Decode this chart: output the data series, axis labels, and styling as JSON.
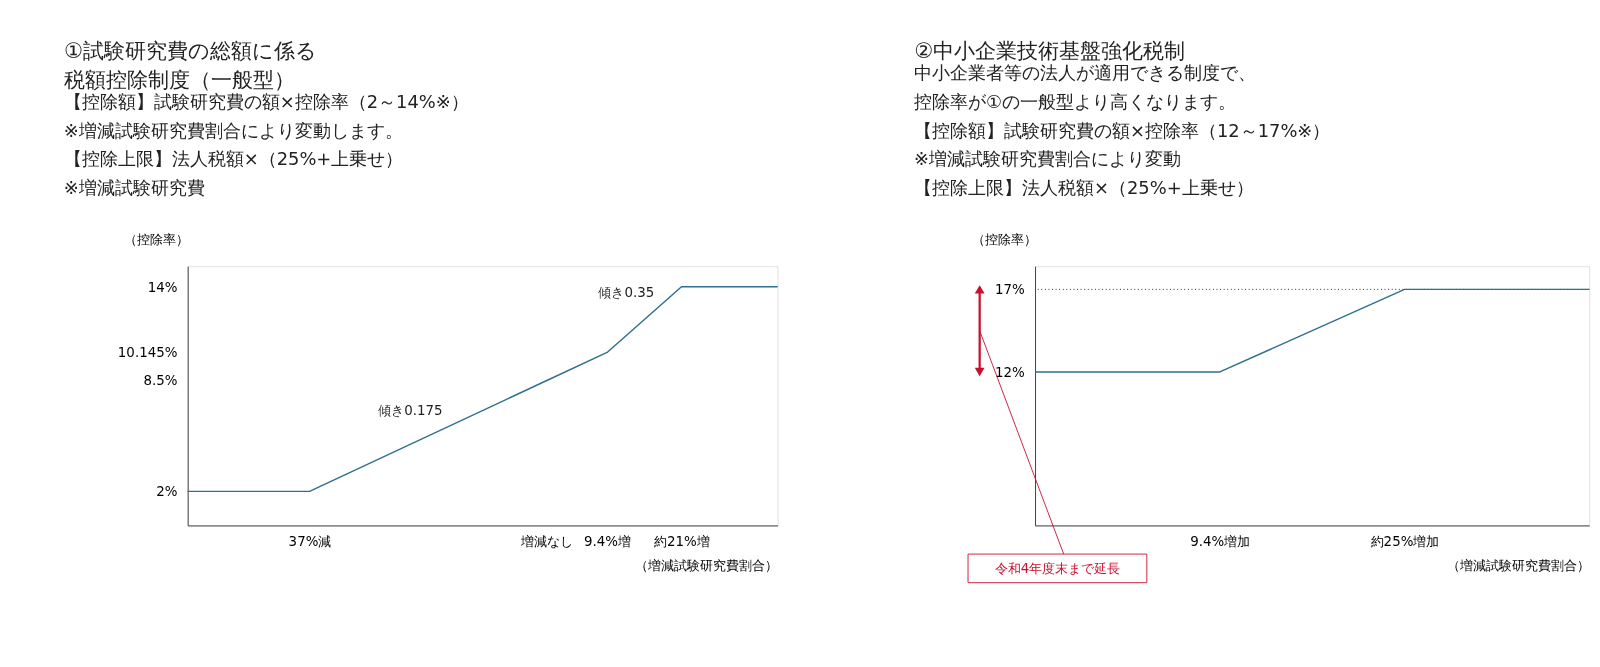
{
  "chart_data": [
    {
      "type": "line",
      "title": "①試験研究費の総額に係る税額控除制度（一般型）",
      "subtitle": "【控除額】試験研究費の額×控除率（2～14%※）",
      "xlabel": "（増減試験研究費割合）",
      "ylabel": "（控除率）",
      "x": [
        -56,
        -37,
        0,
        9.4,
        21,
        36
      ],
      "series": [
        {
          "color": "#2f6f8f",
          "values": [
            2,
            2,
            8.5,
            10.145,
            14,
            14
          ]
        }
      ],
      "xlim": [
        -56,
        36
      ],
      "xticks": [
        {
          "value": -37,
          "label": "37%減"
        },
        {
          "value": 0,
          "label": "増減なし"
        },
        {
          "value": 9.4,
          "label": "9.4%増"
        },
        {
          "value": 21,
          "label": "約21%増"
        }
      ],
      "ylim": [
        0,
        15.2
      ],
      "yticks": [
        {
          "value": 2,
          "label": "2%"
        },
        {
          "value": 8.5,
          "label": "8.5%"
        },
        {
          "value": 10.145,
          "label": "10.145%"
        },
        {
          "value": 14,
          "label": "14%"
        }
      ],
      "annotations": [
        "※増減試験研究費割合により変動します。",
        "【控除上限】法人税額×（25%+上乗せ）",
        "※増減試験研究費",
        {
          "text": "傾き0.175",
          "x": -18.5,
          "y": 5.25
        },
        {
          "text": "傾き0.35",
          "x": 15.2,
          "y": 12.175
        }
      ],
      "grid": false,
      "marker": "none",
      "line_style": "solid"
    },
    {
      "type": "line",
      "title": "②中小企業技術基盤強化税制",
      "subtitle": "　中小企業者等の法人が適用できる制度で、控除率が①の一般型より高くなります。",
      "xlabel": "（増減試験研究費割合）",
      "ylabel": "（控除率）",
      "categories": [
        null,
        "9.4%増加",
        "約25%増加",
        null
      ],
      "series": [
        {
          "color": "#2f6f8f",
          "values": [
            12,
            12,
            17,
            17
          ]
        }
      ],
      "ylim": [
        2.7,
        18.4
      ],
      "yticks": [
        {
          "value": 12,
          "label": "12%"
        },
        {
          "value": 17,
          "label": "17%"
        }
      ],
      "ref_lines": [
        {
          "axis": "y",
          "value": 17,
          "line_style": "dotted",
          "color": "#000000"
        }
      ],
      "annotations": [
        "【控除額】試験研究費の額×控除率（12～17%※）",
        "※増減試験研究費割合により変動",
        "【控除上限】法人税額×（25%+上乗せ）",
        {
          "text": "令和4年度末まで延長"
        }
      ],
      "grid": false,
      "marker": "none",
      "line_style": "solid"
    }
  ]
}
